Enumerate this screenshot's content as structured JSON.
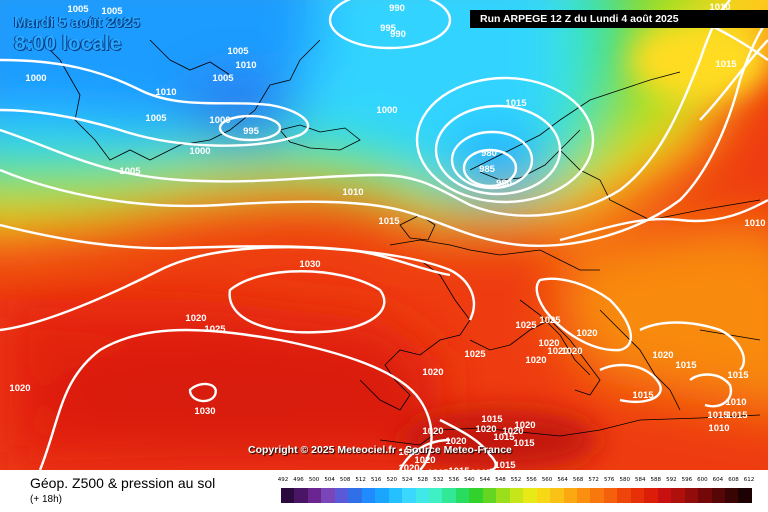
{
  "header": {
    "date_line": "Mardi 5 août 2025",
    "time_line": "8:00 locale",
    "run_info": "Run ARPEGE 12 Z du Lundi 4 août 2025"
  },
  "map": {
    "copyright": "Copyright © 2025 Meteociel.fr - Source Meteo-France",
    "isobar_color": "#ffffff",
    "pressure_labels": [
      "1005",
      "1005",
      "1000",
      "1005",
      "1010",
      "1005",
      "1010",
      "1005",
      "1000",
      "995",
      "1000",
      "1005",
      "1010",
      "1000",
      "995",
      "990",
      "990",
      "980",
      "985",
      "980",
      "1015",
      "1015",
      "1010",
      "1010",
      "1015",
      "1030",
      "1030",
      "1020",
      "1025",
      "1020",
      "1020",
      "1025",
      "1025",
      "1020",
      "1020",
      "1025",
      "1020",
      "1020",
      "1020",
      "1020",
      "1020",
      "1015",
      "1020",
      "1015",
      "1015",
      "1015",
      "1010",
      "1010",
      "1015",
      "1015",
      "1020",
      "1020",
      "1020",
      "1015",
      "1015",
      "1015",
      "1015",
      "1020",
      "1025",
      "1020",
      "1015",
      "1015"
    ],
    "scale_colors": [
      "#2b0a3d",
      "#4b1565",
      "#6b2590",
      "#7a45b8",
      "#5a5ad8",
      "#2f6fe8",
      "#1e8cff",
      "#1aa5ff",
      "#24c0ff",
      "#3ad8ff",
      "#40e8e8",
      "#3ef0c4",
      "#32e896",
      "#28dc60",
      "#32d22c",
      "#64d622",
      "#9ade1c",
      "#c6e61a",
      "#e8ea18",
      "#f6d816",
      "#fac214",
      "#fba812",
      "#fb9010",
      "#f8780e",
      "#f4600c",
      "#ee460a",
      "#e83008",
      "#dc1e08",
      "#c81010",
      "#b0100c",
      "#920c0c",
      "#740808",
      "#560606",
      "#3a0404",
      "#1c0202"
    ]
  },
  "footer": {
    "title": "Géop. Z500 & pression au sol",
    "subtitle": "(+ 18h)",
    "scale_labels": [
      "492",
      "496",
      "500",
      "504",
      "508",
      "512",
      "516",
      "520",
      "524",
      "528",
      "532",
      "536",
      "540",
      "544",
      "548",
      "552",
      "556",
      "560",
      "564",
      "568",
      "572",
      "576",
      "580",
      "584",
      "588",
      "592",
      "596",
      "600",
      "604",
      "608",
      "612"
    ]
  }
}
